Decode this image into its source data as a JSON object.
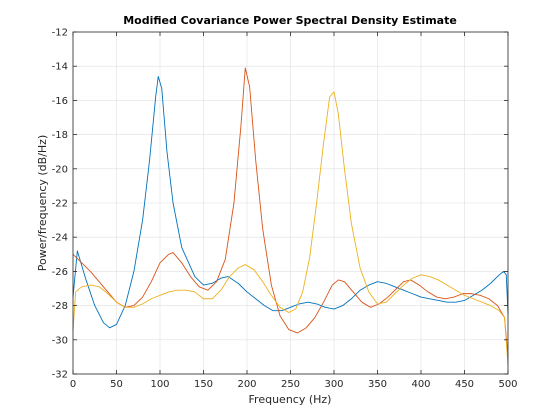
{
  "chart_data": {
    "type": "line",
    "title": "Modified Covariance Power Spectral Density Estimate",
    "xlabel": "Frequency (Hz)",
    "ylabel": "Power/frequency (dB/Hz)",
    "xlim": [
      0,
      500
    ],
    "ylim": [
      -32,
      -12
    ],
    "xticks": [
      0,
      50,
      100,
      150,
      200,
      250,
      300,
      350,
      400,
      450,
      500
    ],
    "yticks": [
      -12,
      -14,
      -16,
      -18,
      -20,
      -22,
      -24,
      -26,
      -28,
      -30,
      -32
    ],
    "grid": true,
    "series": [
      {
        "color": "#0072BD",
        "points": [
          [
            0,
            -27.5
          ],
          [
            5,
            -24.8
          ],
          [
            15,
            -26.5
          ],
          [
            25,
            -28.0
          ],
          [
            35,
            -29.0
          ],
          [
            42,
            -29.3
          ],
          [
            50,
            -29.1
          ],
          [
            60,
            -28.0
          ],
          [
            70,
            -26.0
          ],
          [
            80,
            -23.0
          ],
          [
            88,
            -19.5
          ],
          [
            95,
            -15.8
          ],
          [
            98,
            -14.6
          ],
          [
            102,
            -15.3
          ],
          [
            108,
            -19.0
          ],
          [
            115,
            -22.0
          ],
          [
            125,
            -24.6
          ],
          [
            140,
            -26.3
          ],
          [
            150,
            -26.8
          ],
          [
            160,
            -26.7
          ],
          [
            170,
            -26.4
          ],
          [
            178,
            -26.3
          ],
          [
            190,
            -26.7
          ],
          [
            200,
            -27.2
          ],
          [
            210,
            -27.6
          ],
          [
            220,
            -28.0
          ],
          [
            230,
            -28.3
          ],
          [
            240,
            -28.3
          ],
          [
            250,
            -28.1
          ],
          [
            260,
            -27.9
          ],
          [
            270,
            -27.8
          ],
          [
            280,
            -27.9
          ],
          [
            290,
            -28.1
          ],
          [
            300,
            -28.2
          ],
          [
            310,
            -28.0
          ],
          [
            320,
            -27.6
          ],
          [
            330,
            -27.1
          ],
          [
            340,
            -26.8
          ],
          [
            350,
            -26.6
          ],
          [
            360,
            -26.7
          ],
          [
            370,
            -26.9
          ],
          [
            380,
            -27.1
          ],
          [
            390,
            -27.3
          ],
          [
            400,
            -27.5
          ],
          [
            410,
            -27.6
          ],
          [
            420,
            -27.7
          ],
          [
            430,
            -27.8
          ],
          [
            440,
            -27.8
          ],
          [
            450,
            -27.7
          ],
          [
            460,
            -27.4
          ],
          [
            470,
            -27.1
          ],
          [
            480,
            -26.7
          ],
          [
            490,
            -26.2
          ],
          [
            495,
            -26.0
          ],
          [
            498,
            -26.2
          ],
          [
            500,
            -28.5
          ]
        ]
      },
      {
        "color": "#D95319",
        "points": [
          [
            0,
            -25.0
          ],
          [
            10,
            -25.5
          ],
          [
            20,
            -26.0
          ],
          [
            30,
            -26.6
          ],
          [
            40,
            -27.2
          ],
          [
            50,
            -27.8
          ],
          [
            60,
            -28.1
          ],
          [
            70,
            -28.0
          ],
          [
            80,
            -27.5
          ],
          [
            90,
            -26.6
          ],
          [
            100,
            -25.5
          ],
          [
            110,
            -25.0
          ],
          [
            115,
            -24.9
          ],
          [
            125,
            -25.5
          ],
          [
            135,
            -26.3
          ],
          [
            145,
            -26.9
          ],
          [
            155,
            -27.1
          ],
          [
            165,
            -26.6
          ],
          [
            175,
            -25.3
          ],
          [
            185,
            -22.0
          ],
          [
            193,
            -17.5
          ],
          [
            198,
            -14.1
          ],
          [
            203,
            -15.2
          ],
          [
            210,
            -19.5
          ],
          [
            218,
            -23.5
          ],
          [
            228,
            -26.8
          ],
          [
            238,
            -28.6
          ],
          [
            248,
            -29.4
          ],
          [
            258,
            -29.6
          ],
          [
            268,
            -29.3
          ],
          [
            278,
            -28.7
          ],
          [
            288,
            -27.8
          ],
          [
            298,
            -26.8
          ],
          [
            305,
            -26.5
          ],
          [
            312,
            -26.6
          ],
          [
            322,
            -27.2
          ],
          [
            332,
            -27.8
          ],
          [
            342,
            -28.1
          ],
          [
            352,
            -27.9
          ],
          [
            362,
            -27.5
          ],
          [
            372,
            -27.0
          ],
          [
            380,
            -26.6
          ],
          [
            388,
            -26.5
          ],
          [
            398,
            -26.8
          ],
          [
            408,
            -27.2
          ],
          [
            418,
            -27.5
          ],
          [
            428,
            -27.6
          ],
          [
            438,
            -27.5
          ],
          [
            448,
            -27.3
          ],
          [
            458,
            -27.3
          ],
          [
            468,
            -27.4
          ],
          [
            478,
            -27.6
          ],
          [
            488,
            -28.0
          ],
          [
            496,
            -28.7
          ],
          [
            500,
            -31.0
          ]
        ]
      },
      {
        "color": "#EDB120",
        "points": [
          [
            0,
            -29.5
          ],
          [
            3,
            -27.2
          ],
          [
            10,
            -26.9
          ],
          [
            20,
            -26.8
          ],
          [
            30,
            -26.9
          ],
          [
            40,
            -27.3
          ],
          [
            50,
            -27.8
          ],
          [
            60,
            -28.1
          ],
          [
            70,
            -28.1
          ],
          [
            80,
            -27.9
          ],
          [
            90,
            -27.6
          ],
          [
            100,
            -27.4
          ],
          [
            110,
            -27.2
          ],
          [
            120,
            -27.1
          ],
          [
            130,
            -27.1
          ],
          [
            140,
            -27.2
          ],
          [
            150,
            -27.6
          ],
          [
            160,
            -27.6
          ],
          [
            170,
            -27.1
          ],
          [
            180,
            -26.3
          ],
          [
            190,
            -25.8
          ],
          [
            198,
            -25.6
          ],
          [
            208,
            -25.9
          ],
          [
            218,
            -26.6
          ],
          [
            228,
            -27.4
          ],
          [
            238,
            -28.1
          ],
          [
            248,
            -28.4
          ],
          [
            256,
            -28.2
          ],
          [
            264,
            -27.2
          ],
          [
            272,
            -25.2
          ],
          [
            280,
            -22.0
          ],
          [
            288,
            -18.5
          ],
          [
            295,
            -15.8
          ],
          [
            300,
            -15.5
          ],
          [
            305,
            -16.8
          ],
          [
            312,
            -20.0
          ],
          [
            320,
            -23.2
          ],
          [
            330,
            -25.8
          ],
          [
            340,
            -27.2
          ],
          [
            350,
            -27.9
          ],
          [
            360,
            -27.8
          ],
          [
            370,
            -27.3
          ],
          [
            380,
            -26.8
          ],
          [
            390,
            -26.4
          ],
          [
            400,
            -26.2
          ],
          [
            410,
            -26.3
          ],
          [
            420,
            -26.5
          ],
          [
            430,
            -26.8
          ],
          [
            440,
            -27.1
          ],
          [
            450,
            -27.4
          ],
          [
            460,
            -27.6
          ],
          [
            470,
            -27.8
          ],
          [
            480,
            -28.0
          ],
          [
            490,
            -28.3
          ],
          [
            496,
            -28.7
          ],
          [
            500,
            -31.5
          ]
        ]
      }
    ]
  }
}
